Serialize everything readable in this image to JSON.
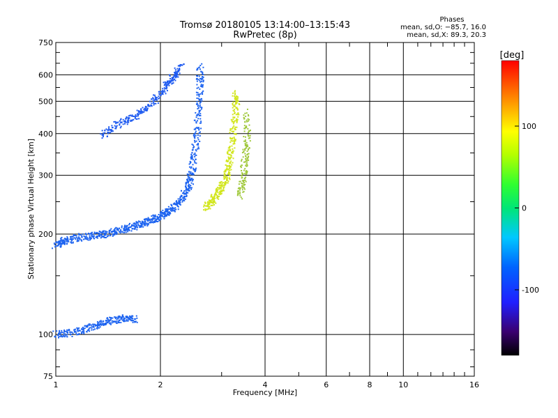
{
  "chart_data": {
    "type": "scatter",
    "title": "Tromsø 20180105 13:14:00–13:15:43",
    "subtitle": "RwPretec (8p)",
    "xlabel": "Frequency [MHz]",
    "ylabel": "Stationary phase Virtual Height [km]",
    "x_scale": "log",
    "y_scale": "log",
    "xlim": [
      1,
      16
    ],
    "ylim": [
      75,
      750
    ],
    "x_ticks": [
      1,
      2,
      4,
      6,
      8,
      10,
      16
    ],
    "y_ticks": [
      75,
      100,
      200,
      300,
      400,
      500,
      600,
      750
    ],
    "grid": true,
    "stats": {
      "heading": "Phases",
      "o_line": "mean, sd,O: −85.7, 16.0",
      "x_line": "mean, sd,X:  89.3, 20.3"
    },
    "colorbar": {
      "label": "[deg]",
      "range": [
        -180,
        180
      ],
      "ticks": [
        100,
        0,
        -100
      ],
      "colormap": "rainbow"
    },
    "traces": [
      {
        "kind": "o-mode F-layer trace",
        "color": "#1e64f0",
        "points": [
          [
            1.0,
            185
          ],
          [
            1.05,
            190
          ],
          [
            1.1,
            193
          ],
          [
            1.2,
            196
          ],
          [
            1.3,
            198
          ],
          [
            1.4,
            200
          ],
          [
            1.5,
            204
          ],
          [
            1.6,
            208
          ],
          [
            1.7,
            212
          ],
          [
            1.8,
            216
          ],
          [
            1.9,
            220
          ],
          [
            2.0,
            226
          ],
          [
            2.1,
            233
          ],
          [
            2.2,
            242
          ],
          [
            2.3,
            255
          ],
          [
            2.4,
            275
          ],
          [
            2.45,
            300
          ],
          [
            2.5,
            340
          ],
          [
            2.55,
            400
          ],
          [
            2.58,
            480
          ],
          [
            2.6,
            560
          ],
          [
            2.6,
            640
          ]
        ]
      },
      {
        "kind": "x-mode F-layer trace",
        "color": "#d2e61e",
        "points": [
          [
            2.7,
            240
          ],
          [
            2.8,
            250
          ],
          [
            2.9,
            262
          ],
          [
            3.0,
            275
          ],
          [
            3.1,
            295
          ],
          [
            3.15,
            320
          ],
          [
            3.2,
            360
          ],
          [
            3.25,
            420
          ],
          [
            3.3,
            480
          ],
          [
            3.3,
            530
          ]
        ]
      },
      {
        "kind": "x-mode upper branch",
        "color": "#a0c83c",
        "points": [
          [
            3.4,
            260
          ],
          [
            3.45,
            290
          ],
          [
            3.5,
            330
          ],
          [
            3.55,
            380
          ],
          [
            3.55,
            470
          ]
        ]
      },
      {
        "kind": "E-layer trace",
        "color": "#1e64f0",
        "points": [
          [
            1.0,
            100
          ],
          [
            1.1,
            101
          ],
          [
            1.2,
            103
          ],
          [
            1.3,
            106
          ],
          [
            1.4,
            109
          ],
          [
            1.5,
            111
          ],
          [
            1.6,
            112
          ],
          [
            1.7,
            111
          ]
        ]
      },
      {
        "kind": "oblique trace",
        "color": "#1e5af0",
        "points": [
          [
            1.35,
            395
          ],
          [
            1.5,
            425
          ],
          [
            1.65,
            445
          ],
          [
            1.8,
            470
          ],
          [
            1.95,
            510
          ],
          [
            2.1,
            560
          ],
          [
            2.2,
            600
          ],
          [
            2.3,
            640
          ]
        ]
      }
    ]
  }
}
